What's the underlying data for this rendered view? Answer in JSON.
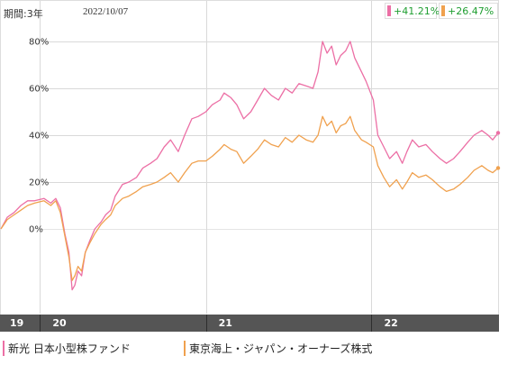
{
  "header": {
    "period_label": "期間:3年",
    "date_label": "2022/10/07",
    "returns": [
      {
        "value": "+41.21%",
        "color": "#ec6fa5"
      },
      {
        "value": "+26.47%",
        "color": "#f0a14e"
      }
    ]
  },
  "legend": [
    {
      "label": "新光 日本小型株ファンド",
      "color": "#ec6fa5"
    },
    {
      "label": "東京海上・ジャパン・オーナーズ株式",
      "color": "#f0a14e"
    }
  ],
  "colors": {
    "axis_band": "#555555",
    "grid": "#d9d9d9",
    "zero_line": "#e4e4e4",
    "series_1": "#ec6fa5",
    "series_2": "#f0a14e"
  },
  "chart_data": {
    "type": "line",
    "title": "",
    "xlabel": "",
    "ylabel": "",
    "ylim": [
      -35,
      90
    ],
    "y_ticks": [
      80,
      60,
      40,
      20,
      0
    ],
    "y_tick_labels": [
      "80%",
      "60%",
      "40%",
      "20%",
      "0%"
    ],
    "grid": true,
    "legend_placement": "bottom",
    "x_domain": [
      "2019-10-07",
      "2022-10-07"
    ],
    "x_ticks": [
      {
        "date": "2020-01-01",
        "label": "19"
      },
      {
        "date": "2021-01-01",
        "label": "20"
      },
      {
        "date": "2022-01-01",
        "label": "21"
      },
      {
        "date": "2022-10-07",
        "label": "22"
      }
    ],
    "series": [
      {
        "name": "新光 日本小型株ファンド",
        "color": "#ec6fa5",
        "points": [
          [
            "2019-10-07",
            0
          ],
          [
            "2019-10-21",
            5
          ],
          [
            "2019-11-05",
            7
          ],
          [
            "2019-11-20",
            10
          ],
          [
            "2019-12-05",
            12
          ],
          [
            "2019-12-20",
            12
          ],
          [
            "2020-01-10",
            13
          ],
          [
            "2020-01-25",
            11
          ],
          [
            "2020-02-05",
            13
          ],
          [
            "2020-02-15",
            9
          ],
          [
            "2020-02-25",
            -2
          ],
          [
            "2020-03-05",
            -10
          ],
          [
            "2020-03-12",
            -26
          ],
          [
            "2020-03-18",
            -24
          ],
          [
            "2020-03-25",
            -18
          ],
          [
            "2020-04-02",
            -20
          ],
          [
            "2020-04-10",
            -10
          ],
          [
            "2020-04-20",
            -5
          ],
          [
            "2020-05-01",
            0
          ],
          [
            "2020-05-15",
            3
          ],
          [
            "2020-05-25",
            6
          ],
          [
            "2020-06-05",
            8
          ],
          [
            "2020-06-15",
            14
          ],
          [
            "2020-07-01",
            19
          ],
          [
            "2020-07-15",
            20
          ],
          [
            "2020-08-01",
            22
          ],
          [
            "2020-08-15",
            26
          ],
          [
            "2020-09-01",
            28
          ],
          [
            "2020-09-15",
            30
          ],
          [
            "2020-10-01",
            35
          ],
          [
            "2020-10-15",
            38
          ],
          [
            "2020-11-01",
            33
          ],
          [
            "2020-11-15",
            40
          ],
          [
            "2020-12-01",
            47
          ],
          [
            "2020-12-15",
            48
          ],
          [
            "2021-01-01",
            50
          ],
          [
            "2021-01-15",
            53
          ],
          [
            "2021-02-01",
            55
          ],
          [
            "2021-02-10",
            58
          ],
          [
            "2021-02-25",
            56
          ],
          [
            "2021-03-10",
            53
          ],
          [
            "2021-03-25",
            47
          ],
          [
            "2021-04-10",
            50
          ],
          [
            "2021-04-25",
            55
          ],
          [
            "2021-05-10",
            60
          ],
          [
            "2021-05-25",
            57
          ],
          [
            "2021-06-10",
            55
          ],
          [
            "2021-06-25",
            60
          ],
          [
            "2021-07-10",
            58
          ],
          [
            "2021-07-25",
            62
          ],
          [
            "2021-08-10",
            61
          ],
          [
            "2021-08-25",
            60
          ],
          [
            "2021-09-05",
            67
          ],
          [
            "2021-09-15",
            80
          ],
          [
            "2021-09-25",
            75
          ],
          [
            "2021-10-05",
            78
          ],
          [
            "2021-10-15",
            70
          ],
          [
            "2021-10-25",
            74
          ],
          [
            "2021-11-05",
            76
          ],
          [
            "2021-11-15",
            80
          ],
          [
            "2021-11-25",
            73
          ],
          [
            "2021-12-10",
            67
          ],
          [
            "2021-12-20",
            63
          ],
          [
            "2022-01-05",
            55
          ],
          [
            "2022-01-15",
            40
          ],
          [
            "2022-01-28",
            35
          ],
          [
            "2022-02-10",
            30
          ],
          [
            "2022-02-25",
            33
          ],
          [
            "2022-03-10",
            28
          ],
          [
            "2022-03-20",
            33
          ],
          [
            "2022-04-01",
            38
          ],
          [
            "2022-04-15",
            35
          ],
          [
            "2022-05-01",
            36
          ],
          [
            "2022-05-15",
            33
          ],
          [
            "2022-06-01",
            30
          ],
          [
            "2022-06-15",
            28
          ],
          [
            "2022-07-01",
            30
          ],
          [
            "2022-07-15",
            33
          ],
          [
            "2022-08-01",
            37
          ],
          [
            "2022-08-15",
            40
          ],
          [
            "2022-09-01",
            42
          ],
          [
            "2022-09-15",
            40
          ],
          [
            "2022-09-25",
            38
          ],
          [
            "2022-10-07",
            41
          ]
        ]
      },
      {
        "name": "東京海上・ジャパン・オーナーズ株式",
        "color": "#f0a14e",
        "points": [
          [
            "2019-10-07",
            0
          ],
          [
            "2019-10-21",
            4
          ],
          [
            "2019-11-05",
            6
          ],
          [
            "2019-11-20",
            8
          ],
          [
            "2019-12-05",
            10
          ],
          [
            "2019-12-20",
            11
          ],
          [
            "2020-01-10",
            12
          ],
          [
            "2020-01-25",
            10
          ],
          [
            "2020-02-05",
            12
          ],
          [
            "2020-02-15",
            7
          ],
          [
            "2020-02-25",
            -3
          ],
          [
            "2020-03-05",
            -12
          ],
          [
            "2020-03-12",
            -22
          ],
          [
            "2020-03-18",
            -20
          ],
          [
            "2020-03-25",
            -16
          ],
          [
            "2020-04-02",
            -18
          ],
          [
            "2020-04-10",
            -10
          ],
          [
            "2020-04-20",
            -6
          ],
          [
            "2020-05-01",
            -2
          ],
          [
            "2020-05-15",
            2
          ],
          [
            "2020-05-25",
            4
          ],
          [
            "2020-06-05",
            6
          ],
          [
            "2020-06-15",
            10
          ],
          [
            "2020-07-01",
            13
          ],
          [
            "2020-07-15",
            14
          ],
          [
            "2020-08-01",
            16
          ],
          [
            "2020-08-15",
            18
          ],
          [
            "2020-09-01",
            19
          ],
          [
            "2020-09-15",
            20
          ],
          [
            "2020-10-01",
            22
          ],
          [
            "2020-10-15",
            24
          ],
          [
            "2020-11-01",
            20
          ],
          [
            "2020-11-15",
            24
          ],
          [
            "2020-12-01",
            28
          ],
          [
            "2020-12-15",
            29
          ],
          [
            "2021-01-01",
            29
          ],
          [
            "2021-01-15",
            31
          ],
          [
            "2021-02-01",
            34
          ],
          [
            "2021-02-10",
            36
          ],
          [
            "2021-02-25",
            34
          ],
          [
            "2021-03-10",
            33
          ],
          [
            "2021-03-25",
            28
          ],
          [
            "2021-04-10",
            31
          ],
          [
            "2021-04-25",
            34
          ],
          [
            "2021-05-10",
            38
          ],
          [
            "2021-05-25",
            36
          ],
          [
            "2021-06-10",
            35
          ],
          [
            "2021-06-25",
            39
          ],
          [
            "2021-07-10",
            37
          ],
          [
            "2021-07-25",
            40
          ],
          [
            "2021-08-10",
            38
          ],
          [
            "2021-08-25",
            37
          ],
          [
            "2021-09-05",
            40
          ],
          [
            "2021-09-15",
            48
          ],
          [
            "2021-09-25",
            44
          ],
          [
            "2021-10-05",
            46
          ],
          [
            "2021-10-15",
            41
          ],
          [
            "2021-10-25",
            44
          ],
          [
            "2021-11-05",
            45
          ],
          [
            "2021-11-15",
            48
          ],
          [
            "2021-11-25",
            42
          ],
          [
            "2021-12-10",
            38
          ],
          [
            "2021-12-20",
            37
          ],
          [
            "2022-01-05",
            35
          ],
          [
            "2022-01-15",
            27
          ],
          [
            "2022-01-28",
            22
          ],
          [
            "2022-02-10",
            18
          ],
          [
            "2022-02-25",
            21
          ],
          [
            "2022-03-10",
            17
          ],
          [
            "2022-03-20",
            20
          ],
          [
            "2022-04-01",
            24
          ],
          [
            "2022-04-15",
            22
          ],
          [
            "2022-05-01",
            23
          ],
          [
            "2022-05-15",
            21
          ],
          [
            "2022-06-01",
            18
          ],
          [
            "2022-06-15",
            16
          ],
          [
            "2022-07-01",
            17
          ],
          [
            "2022-07-15",
            19
          ],
          [
            "2022-08-01",
            22
          ],
          [
            "2022-08-15",
            25
          ],
          [
            "2022-09-01",
            27
          ],
          [
            "2022-09-15",
            25
          ],
          [
            "2022-09-25",
            24
          ],
          [
            "2022-10-07",
            26
          ]
        ]
      }
    ]
  }
}
